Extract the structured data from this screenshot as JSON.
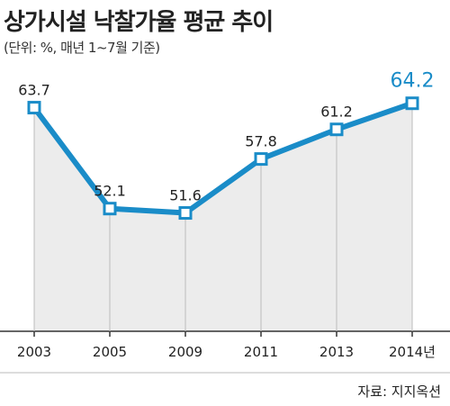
{
  "title": "상가시설 낙찰가율 평균 추이",
  "subtitle": "(단위: %, 매년 1~7월 기준)",
  "source": "자료: 지지옥션",
  "colors": {
    "line": "#1a8cc8",
    "area": "#ececec",
    "highlight": "#1a8cc8",
    "axis": "#333333"
  },
  "chart_data": {
    "type": "area",
    "categories": [
      "2003",
      "2005",
      "2009",
      "2011",
      "2013",
      "2014년"
    ],
    "values": [
      63.7,
      52.1,
      51.6,
      57.8,
      61.2,
      64.2
    ],
    "labels": [
      "63.7",
      "52.1",
      "51.6",
      "57.8",
      "61.2",
      "64.2"
    ],
    "highlight_index": 5,
    "title": "상가시설 낙찰가율 평균 추이",
    "unit_note": "(단위: %, 매년 1~7월 기준)",
    "xlabel": "",
    "ylabel": "",
    "ylim": [
      38,
      68
    ],
    "grid": false,
    "legend": "none"
  }
}
